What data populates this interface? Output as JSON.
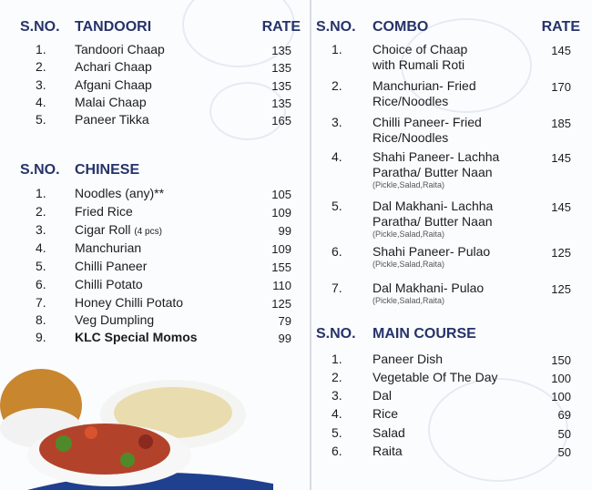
{
  "tandoori": {
    "sno": "S.NO.",
    "title": "TANDOORI",
    "rate": "RATE",
    "items": [
      {
        "no": "1.",
        "name": "Tandoori Chaap",
        "rate": "135"
      },
      {
        "no": "2.",
        "name": "Achari Chaap",
        "rate": "135"
      },
      {
        "no": "3.",
        "name": "Afgani Chaap",
        "rate": "135"
      },
      {
        "no": "4.",
        "name": "Malai Chaap",
        "rate": "135"
      },
      {
        "no": "5.",
        "name": "Paneer Tikka",
        "rate": "165"
      }
    ]
  },
  "chinese": {
    "sno": "S.NO.",
    "title": "CHINESE",
    "items": [
      {
        "no": "1.",
        "name": "Noodles (any)**",
        "rate": "105"
      },
      {
        "no": "2.",
        "name": "Fried Rice",
        "rate": "109"
      },
      {
        "no": "3.",
        "name": "Cigar Roll",
        "extra": "(4 pcs)",
        "rate": "99"
      },
      {
        "no": "4.",
        "name": "Manchurian",
        "rate": "109"
      },
      {
        "no": "5.",
        "name": "Chilli Paneer",
        "rate": "155"
      },
      {
        "no": "6.",
        "name": "Chilli Potato",
        "rate": "110"
      },
      {
        "no": "7.",
        "name": "Honey Chilli Potato",
        "rate": "125"
      },
      {
        "no": "8.",
        "name": "Veg Dumpling",
        "rate": "79"
      },
      {
        "no": "9.",
        "name": "KLC Special Momos",
        "rate": "99"
      }
    ]
  },
  "combo": {
    "sno": "S.NO.",
    "title": "COMBO",
    "rate": "RATE",
    "items": [
      {
        "no": "1.",
        "line1": "Choice of Chaap",
        "line2": "with Rumali Roti",
        "rate": "145"
      },
      {
        "no": "2.",
        "line1": "Manchurian- Fried",
        "line2": "Rice/Noodles",
        "rate": "170"
      },
      {
        "no": "3.",
        "line1": "Chilli Paneer- Fried",
        "line2": "Rice/Noodles",
        "rate": "185"
      },
      {
        "no": "4.",
        "line1": "Shahi Paneer- Lachha",
        "line2": "Paratha/ Butter Naan",
        "note": "(Pickle,Salad,Raita)",
        "rate": "145"
      },
      {
        "no": "5.",
        "line1": "Dal Makhani- Lachha",
        "line2": "Paratha/ Butter Naan",
        "note": "(Pickle,Salad,Raita)",
        "rate": "145"
      },
      {
        "no": "6.",
        "line1": "Shahi Paneer- Pulao",
        "note": "(Pickle,Salad,Raita)",
        "rate": "125"
      },
      {
        "no": "7.",
        "line1": "Dal  Makhani- Pulao",
        "note": "(Pickle,Salad,Raita)",
        "rate": "125"
      }
    ]
  },
  "main_course": {
    "sno": "S.NO.",
    "title": "MAIN COURSE",
    "items": [
      {
        "no": "1.",
        "name": "Paneer Dish",
        "rate": "150"
      },
      {
        "no": "2.",
        "name": "Vegetable Of The Day",
        "rate": "100"
      },
      {
        "no": "3.",
        "name": "Dal",
        "rate": "100"
      },
      {
        "no": "4.",
        "name": "Rice",
        "rate": "69"
      },
      {
        "no": "5.",
        "name": "Salad",
        "rate": "50"
      },
      {
        "no": "6.",
        "name": "Raita",
        "rate": "50"
      }
    ]
  },
  "colors": {
    "heading": "#26336a",
    "accent_blue": "#1f3f8f"
  }
}
